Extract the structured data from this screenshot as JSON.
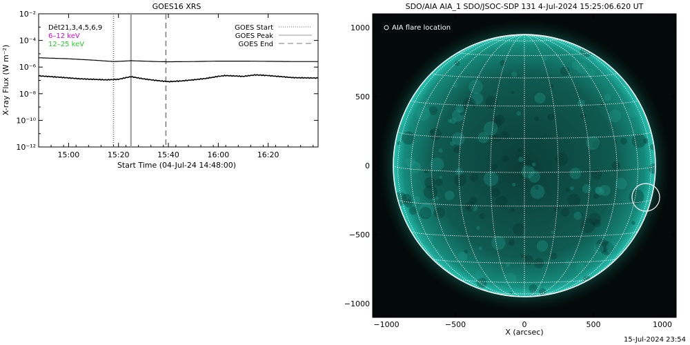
{
  "footer_date": "15-Jul-2024 23:54",
  "chart_data": [
    {
      "type": "line",
      "title": "GOES16 XRS",
      "xlabel": "Start Time (04-Jul-24 14:48:00)",
      "ylabel": "X-ray Flux (W m⁻²)",
      "y_scale": "log",
      "ylim": [
        1e-12,
        0.01
      ],
      "xlim": [
        "14:48",
        "16:40"
      ],
      "x_ticks": [
        "15:00",
        "15:20",
        "15:40",
        "16:00",
        "16:20"
      ],
      "y_ticks": [
        "10⁻¹²",
        "10⁻¹⁰",
        "10⁻⁸",
        "10⁻⁶",
        "10⁻⁴",
        "10⁻²"
      ],
      "legend_left": [
        {
          "text": "Dēt21,3,4,5,6,9",
          "color": "#000000"
        },
        {
          "text": "6–12 keV",
          "color": "#d400d4"
        },
        {
          "text": "12–25 keV",
          "color": "#22cc22"
        }
      ],
      "legend_right": [
        {
          "name": "GOES Start",
          "style": "dotted",
          "time": "15:18"
        },
        {
          "name": "GOES Peak",
          "style": "solid",
          "time": "15:25"
        },
        {
          "name": "GOES End",
          "style": "dashed",
          "time": "15:39"
        }
      ],
      "series": [
        {
          "name": "6–12 keV",
          "color": "#000000",
          "x": [
            "14:48",
            "15:00",
            "15:10",
            "15:18",
            "15:22",
            "15:25",
            "15:30",
            "15:35",
            "15:40",
            "15:50",
            "16:00",
            "16:10",
            "16:20",
            "16:30",
            "16:40"
          ],
          "y": [
            5e-06,
            4.2e-06,
            3.3e-06,
            2.6e-06,
            2.8e-06,
            3e-06,
            2.8e-06,
            2.6e-06,
            2.5e-06,
            2.6e-06,
            2.8e-06,
            2.8e-06,
            2.7e-06,
            2.6e-06,
            2.6e-06
          ]
        },
        {
          "name": "12–25 keV",
          "color": "#000000",
          "x": [
            "14:48",
            "14:55",
            "15:05",
            "15:15",
            "15:20",
            "15:23",
            "15:25",
            "15:30",
            "15:35",
            "15:40",
            "15:45",
            "15:50",
            "15:55",
            "16:00",
            "16:03",
            "16:10",
            "16:15",
            "16:20",
            "16:30",
            "16:40"
          ],
          "y": [
            2.2e-07,
            1.8e-07,
            1.3e-07,
            1.1e-07,
            1.2e-07,
            1.6e-07,
            1.9e-07,
            1.3e-07,
            1e-07,
            8e-08,
            9e-08,
            1.1e-07,
            1.4e-07,
            2e-07,
            2.3e-07,
            2e-07,
            2.6e-07,
            2.3e-07,
            1.6e-07,
            1.5e-07
          ]
        }
      ]
    },
    {
      "type": "image",
      "title": "SDO/AIA AIA_1 SDO/JSOC-SDP 131  4-Jul-2024 15:25:06.620 UT",
      "xlabel": "X (arcsec)",
      "ylabel": "",
      "xlim": [
        -1100,
        1100
      ],
      "ylim": [
        -1100,
        1100
      ],
      "x_ticks": [
        "−1000",
        "−500",
        "0",
        "500",
        "1000"
      ],
      "y_ticks": [
        "−1000",
        "−500",
        "0",
        "500",
        "1000"
      ],
      "legend": "AIA flare location",
      "solar_radius_arcsec": 950,
      "flare_location": {
        "x": 880,
        "y": -230
      },
      "colors": {
        "disk": "#0e6e62",
        "limb": "#1fb8a8",
        "background": "#030a09",
        "grid": "#ffffff"
      }
    }
  ]
}
